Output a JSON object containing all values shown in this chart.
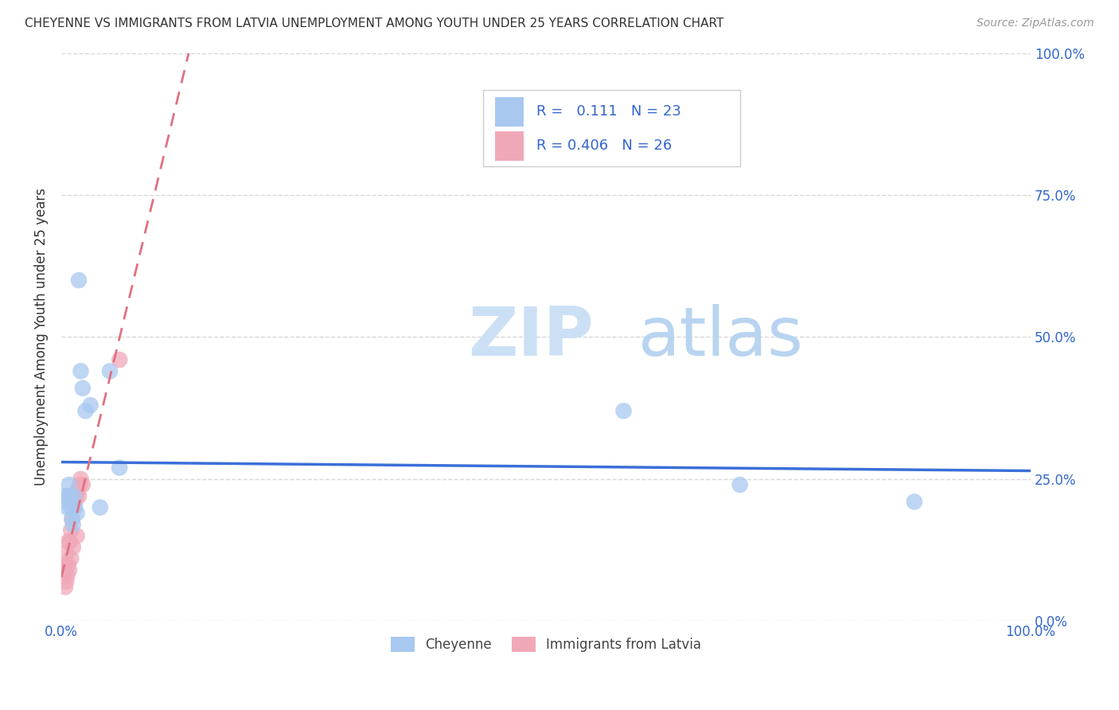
{
  "title": "CHEYENNE VS IMMIGRANTS FROM LATVIA UNEMPLOYMENT AMONG YOUTH UNDER 25 YEARS CORRELATION CHART",
  "source": "Source: ZipAtlas.com",
  "ylabel": "Unemployment Among Youth under 25 years",
  "legend_cheyenne": "Cheyenne",
  "legend_latvia": "Immigrants from Latvia",
  "r_cheyenne": "0.111",
  "n_cheyenne": "23",
  "r_latvia": "0.406",
  "n_latvia": "26",
  "cheyenne_color": "#a8c8f0",
  "latvia_color": "#f0a8b8",
  "trend_cheyenne_color": "#3a6fd8",
  "trend_latvia_color": "#e07080",
  "watermark_zip": "ZIP",
  "watermark_atlas": "atlas",
  "cheyenne_x": [
    0.003,
    0.005,
    0.006,
    0.007,
    0.008,
    0.009,
    0.01,
    0.011,
    0.012,
    0.013,
    0.014,
    0.016,
    0.018,
    0.02,
    0.022,
    0.025,
    0.03,
    0.04,
    0.05,
    0.06,
    0.58,
    0.7,
    0.88
  ],
  "cheyenne_y": [
    0.22,
    0.21,
    0.2,
    0.22,
    0.24,
    0.22,
    0.2,
    0.18,
    0.17,
    0.22,
    0.2,
    0.19,
    0.6,
    0.44,
    0.41,
    0.37,
    0.38,
    0.2,
    0.44,
    0.27,
    0.37,
    0.24,
    0.21
  ],
  "latvia_x": [
    0.002,
    0.003,
    0.004,
    0.004,
    0.005,
    0.005,
    0.006,
    0.007,
    0.007,
    0.008,
    0.008,
    0.009,
    0.01,
    0.01,
    0.011,
    0.012,
    0.013,
    0.014,
    0.015,
    0.016,
    0.017,
    0.018,
    0.019,
    0.02,
    0.022,
    0.06
  ],
  "latvia_y": [
    0.08,
    0.09,
    0.06,
    0.1,
    0.07,
    0.12,
    0.08,
    0.1,
    0.14,
    0.09,
    0.22,
    0.14,
    0.11,
    0.16,
    0.18,
    0.13,
    0.2,
    0.21,
    0.22,
    0.15,
    0.23,
    0.22,
    0.24,
    0.25,
    0.24,
    0.46
  ],
  "xlim": [
    0.0,
    1.0
  ],
  "ylim": [
    0.0,
    1.0
  ],
  "xticks": [
    0.0,
    0.25,
    0.5,
    0.75,
    1.0
  ],
  "yticks": [
    0.0,
    0.25,
    0.5,
    0.75,
    1.0
  ],
  "xticklabels_bottom": [
    "0.0%",
    "",
    "",
    "",
    "100.0%"
  ],
  "yticklabels_right": [
    "0.0%",
    "25.0%",
    "50.0%",
    "75.0%",
    "100.0%"
  ],
  "background_color": "#ffffff",
  "grid_color": "#d8d8d8",
  "tick_color": "#3366cc",
  "title_color": "#333333",
  "source_color": "#999999",
  "ylabel_color": "#333333"
}
